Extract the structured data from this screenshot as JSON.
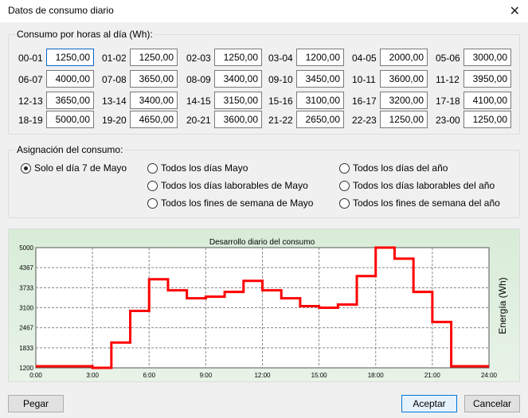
{
  "window": {
    "title": "Datos de consumo diario",
    "close_glyph": "✕"
  },
  "hours_group": {
    "label": "Consumo por horas al día (Wh):",
    "cells": [
      {
        "label": "00-01",
        "value": "1250,00"
      },
      {
        "label": "01-02",
        "value": "1250,00"
      },
      {
        "label": "02-03",
        "value": "1250,00"
      },
      {
        "label": "03-04",
        "value": "1200,00"
      },
      {
        "label": "04-05",
        "value": "2000,00"
      },
      {
        "label": "05-06",
        "value": "3000,00"
      },
      {
        "label": "06-07",
        "value": "4000,00"
      },
      {
        "label": "07-08",
        "value": "3650,00"
      },
      {
        "label": "08-09",
        "value": "3400,00"
      },
      {
        "label": "09-10",
        "value": "3450,00"
      },
      {
        "label": "10-11",
        "value": "3600,00"
      },
      {
        "label": "11-12",
        "value": "3950,00"
      },
      {
        "label": "12-13",
        "value": "3650,00"
      },
      {
        "label": "13-14",
        "value": "3400,00"
      },
      {
        "label": "14-15",
        "value": "3150,00"
      },
      {
        "label": "15-16",
        "value": "3100,00"
      },
      {
        "label": "16-17",
        "value": "3200,00"
      },
      {
        "label": "17-18",
        "value": "4100,00"
      },
      {
        "label": "18-19",
        "value": "5000,00"
      },
      {
        "label": "19-20",
        "value": "4650,00"
      },
      {
        "label": "20-21",
        "value": "3600,00"
      },
      {
        "label": "21-22",
        "value": "2650,00"
      },
      {
        "label": "22-23",
        "value": "1250,00"
      },
      {
        "label": "23-00",
        "value": "1250,00"
      }
    ]
  },
  "assign_group": {
    "label": "Asignación del consumo:",
    "options": [
      {
        "label": "Solo el día 7 de Mayo",
        "selected": true
      },
      {
        "label": "Todos los días Mayo",
        "selected": false
      },
      {
        "label": "Todos los días laborables de Mayo",
        "selected": false
      },
      {
        "label": "Todos los fines de semana de Mayo",
        "selected": false
      },
      {
        "label": "Todos los días del año",
        "selected": false
      },
      {
        "label": "Todos los días laborables del año",
        "selected": false
      },
      {
        "label": "Todos los fines de semana del año",
        "selected": false
      }
    ]
  },
  "chart_data": {
    "type": "line",
    "step": true,
    "title": "Desarrollo diario del consumo",
    "ylabel": "Energía (Wh)",
    "xlabel": "",
    "xlim": [
      0,
      24
    ],
    "ylim": [
      1200,
      5000
    ],
    "x_ticks": [
      "0:00",
      "3:00",
      "6:00",
      "9:00",
      "12:00",
      "15:00",
      "18:00",
      "21:00",
      "24:00"
    ],
    "y_ticks": [
      "1200",
      "1833",
      "2467",
      "3100",
      "3733",
      "4367",
      "5000"
    ],
    "grid": true,
    "line_color": "#ff0000",
    "values": [
      1250,
      1250,
      1250,
      1200,
      2000,
      3000,
      4000,
      3650,
      3400,
      3450,
      3600,
      3950,
      3650,
      3400,
      3150,
      3100,
      3200,
      4100,
      5000,
      4650,
      3600,
      2650,
      1250,
      1250
    ]
  },
  "buttons": {
    "paste": "Pegar",
    "accept": "Aceptar",
    "cancel": "Cancelar"
  }
}
